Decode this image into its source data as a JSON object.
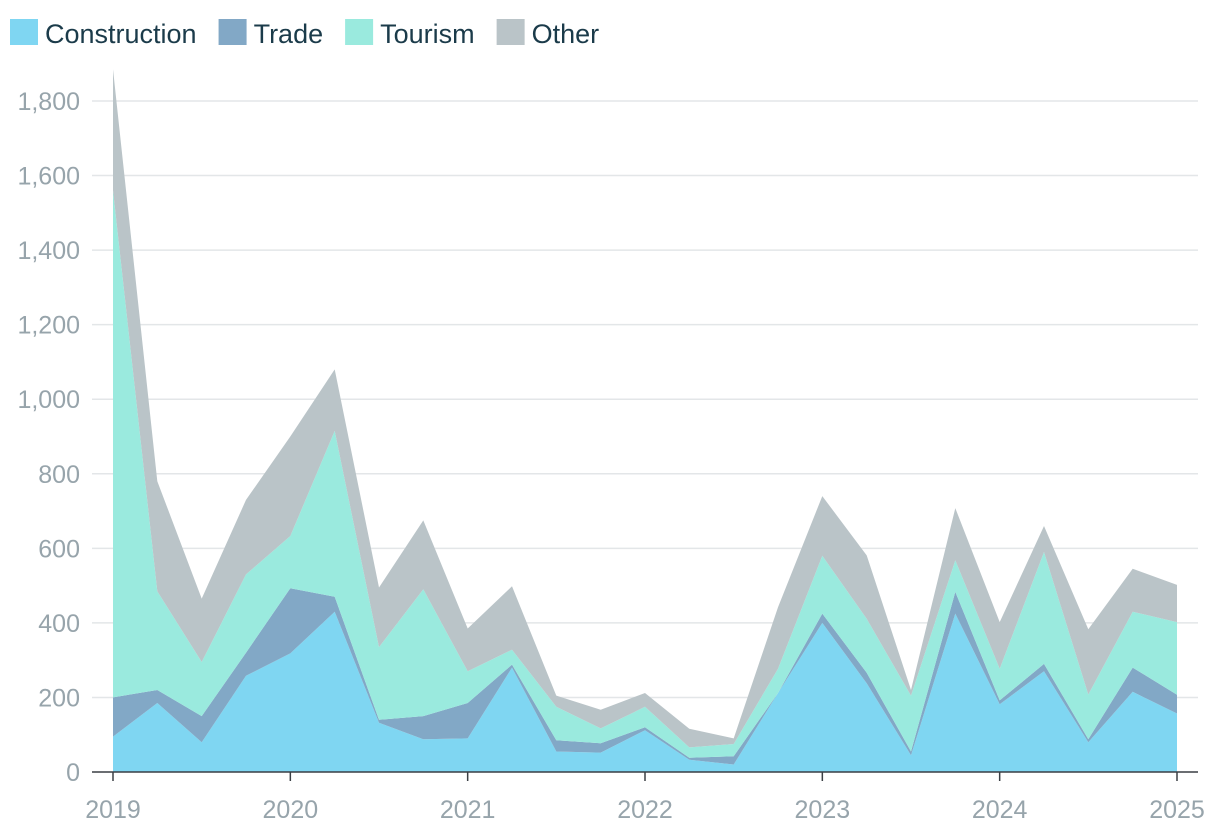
{
  "chart_data": {
    "type": "area",
    "stacked": true,
    "x": [
      "2019-Q1",
      "2019-Q2",
      "2019-Q3",
      "2019-Q4",
      "2020-Q1",
      "2020-Q2",
      "2020-Q3",
      "2020-Q4",
      "2021-Q1",
      "2021-Q2",
      "2021-Q3",
      "2021-Q4",
      "2022-Q1",
      "2022-Q2",
      "2022-Q3",
      "2022-Q4",
      "2023-Q1",
      "2023-Q2",
      "2023-Q3",
      "2023-Q4",
      "2024-Q1",
      "2024-Q2",
      "2024-Q3",
      "2024-Q4",
      "2025-Q1"
    ],
    "series": [
      {
        "name": "Construction",
        "color": "#7fd6f2",
        "values": [
          95,
          185,
          80,
          258,
          318,
          430,
          132,
          88,
          90,
          280,
          55,
          52,
          112,
          33,
          20,
          212,
          400,
          238,
          45,
          425,
          182,
          270,
          80,
          215,
          157
        ]
      },
      {
        "name": "Trade",
        "color": "#82a8c6",
        "values": [
          105,
          35,
          70,
          62,
          175,
          40,
          8,
          62,
          95,
          8,
          30,
          25,
          8,
          5,
          22,
          0,
          25,
          28,
          10,
          58,
          10,
          20,
          8,
          65,
          50
        ]
      },
      {
        "name": "Tourism",
        "color": "#9aeade",
        "values": [
          1360,
          265,
          145,
          210,
          140,
          445,
          195,
          340,
          85,
          40,
          90,
          40,
          55,
          28,
          33,
          65,
          155,
          145,
          150,
          85,
          85,
          300,
          120,
          150,
          195
        ]
      },
      {
        "name": "Other",
        "color": "#bac4c8",
        "values": [
          325,
          295,
          170,
          200,
          267,
          165,
          160,
          185,
          115,
          170,
          30,
          50,
          37,
          50,
          15,
          165,
          160,
          170,
          15,
          140,
          125,
          70,
          175,
          115,
          100
        ]
      }
    ],
    "yticks": [
      "0",
      "200",
      "400",
      "600",
      "800",
      "1,000",
      "1,200",
      "1,400",
      "1,600",
      "1,800"
    ],
    "ytick_values": [
      0,
      200,
      400,
      600,
      800,
      1000,
      1200,
      1400,
      1600,
      1800
    ],
    "xticks": [
      "2019",
      "2020",
      "2021",
      "2022",
      "2023",
      "2024",
      "2025"
    ],
    "xtick_values": [
      "2019-Q1",
      "2020-Q1",
      "2021-Q1",
      "2022-Q1",
      "2023-Q1",
      "2024-Q1",
      "2025-Q1"
    ],
    "ylim": [
      0,
      1880
    ],
    "grid": true,
    "legend": "top-left",
    "title": "",
    "xlabel": "",
    "ylabel": ""
  }
}
